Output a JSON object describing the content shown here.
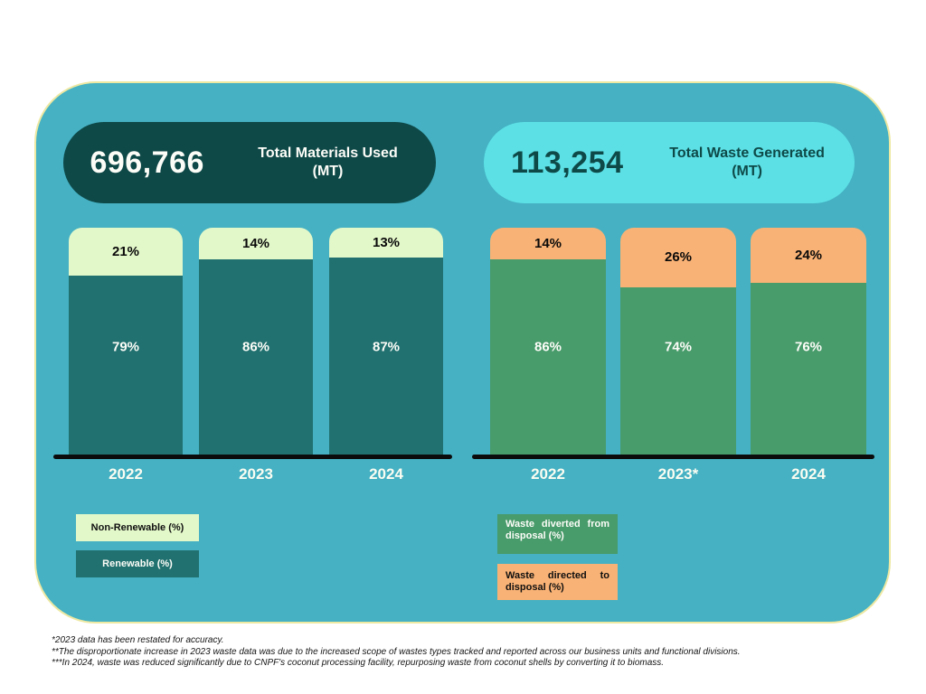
{
  "header": {
    "materials": {
      "value": "696,766",
      "title_line1": "Total Materials Used",
      "title_line2": "(MT)"
    },
    "waste": {
      "value": "113,254",
      "title_line1": "Total Waste Generated",
      "title_line2": "(MT)"
    }
  },
  "chart_data": [
    {
      "type": "bar",
      "stacked": true,
      "title": "Total Materials Used (MT)",
      "total_label": "696,766",
      "total_value": 696766,
      "categories": [
        "2022",
        "2023",
        "2024"
      ],
      "series": [
        {
          "name": "Non-Renewable (%)",
          "values": [
            21,
            14,
            13
          ],
          "color": "#E3F8C9",
          "label_color": "#0A0A0A"
        },
        {
          "name": "Renewable (%)",
          "values": [
            79,
            86,
            87
          ],
          "color": "#217170",
          "label_color": "#FDFDF8"
        }
      ],
      "stack_top_series_index": 0,
      "ylim": [
        0,
        100
      ],
      "grid": false,
      "legend_position": "bottom-left"
    },
    {
      "type": "bar",
      "stacked": true,
      "title": "Total Waste Generated (MT)",
      "total_label": "113,254",
      "total_value": 113254,
      "categories": [
        "2022",
        "2023*",
        "2024"
      ],
      "series": [
        {
          "name": "Waste directed to disposal (%)",
          "values": [
            14,
            26,
            24
          ],
          "color": "#F9B275",
          "label_color": "#0A0A0A"
        },
        {
          "name": "Waste diverted from disposal (%)",
          "values": [
            86,
            74,
            76
          ],
          "color": "#489B6B",
          "label_color": "#FDFDF8"
        }
      ],
      "stack_top_series_index": 0,
      "ylim": [
        0,
        100
      ],
      "grid": false,
      "legend_position": "bottom-left"
    }
  ],
  "legends": {
    "materials": [
      {
        "label": "Non-Renewable (%)"
      },
      {
        "label": "Renewable (%)"
      }
    ],
    "waste": [
      {
        "label": "Waste diverted from disposal (%)"
      },
      {
        "label": "Waste directed to disposal (%)"
      }
    ]
  },
  "footnotes": [
    "*2023 data has been restated for accuracy.",
    "**The disproportionate increase in 2023 waste data was due to the increased scope of wastes types tracked and reported across our business units and functional divisions.",
    "***In 2024, waste was reduced significantly due to CNPF's coconut processing facility, repurposing waste from coconut shells by converting it to biomass."
  ],
  "colors": {
    "card_background": "#45B1C3",
    "card_border": "#EDE8A2",
    "materials_pill_background": "#0E4948",
    "materials_pill_text": "#FDFDF8",
    "waste_pill_background": "#5CE0E5",
    "waste_pill_text": "#0E4948",
    "non_renewable_segment": "#E3F8C9",
    "renewable_segment": "#217170",
    "waste_diverted_segment": "#489B6B",
    "waste_directed_segment": "#F9B275",
    "axis_line": "#0B0B0B",
    "year_label_text": "#FBFDF2"
  }
}
